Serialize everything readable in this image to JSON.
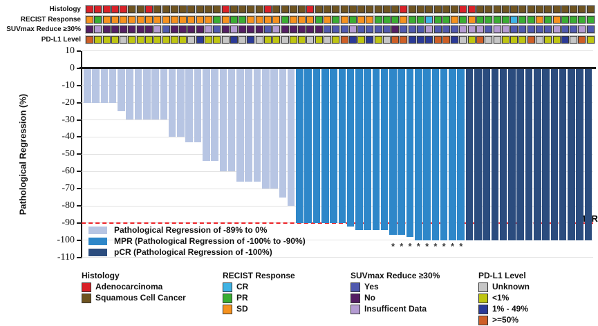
{
  "tracks": {
    "rows": [
      {
        "label": "Histology",
        "values": [
          "A",
          "A",
          "A",
          "A",
          "A",
          "S",
          "S",
          "A",
          "S",
          "S",
          "S",
          "S",
          "S",
          "S",
          "S",
          "S",
          "A",
          "S",
          "S",
          "S",
          "S",
          "A",
          "S",
          "S",
          "S",
          "S",
          "A",
          "S",
          "S",
          "S",
          "S",
          "S",
          "S",
          "S",
          "S",
          "S",
          "S",
          "A",
          "S",
          "S",
          "S",
          "S",
          "S",
          "S",
          "A",
          "A",
          "S",
          "S",
          "S",
          "S",
          "S",
          "S",
          "S",
          "S",
          "S",
          "S",
          "S",
          "S",
          "S",
          "S"
        ],
        "palette": {
          "A": "#da2128",
          "S": "#6f5420"
        }
      },
      {
        "label": "RECIST Response",
        "values": [
          "O",
          "G",
          "O",
          "O",
          "O",
          "O",
          "O",
          "O",
          "O",
          "O",
          "O",
          "O",
          "O",
          "O",
          "O",
          "G",
          "O",
          "G",
          "G",
          "O",
          "O",
          "O",
          "O",
          "G",
          "O",
          "O",
          "O",
          "G",
          "O",
          "G",
          "O",
          "G",
          "O",
          "O",
          "G",
          "G",
          "G",
          "O",
          "G",
          "G",
          "C",
          "G",
          "G",
          "O",
          "G",
          "O",
          "G",
          "G",
          "G",
          "G",
          "C",
          "G",
          "G",
          "O",
          "G",
          "O",
          "G",
          "G",
          "G",
          "G"
        ],
        "palette": {
          "O": "#f6921e",
          "G": "#3aae32",
          "C": "#3fb3e4"
        }
      },
      {
        "label": "SUVmax Reduce ≥30%",
        "values": [
          "N",
          "I",
          "N",
          "N",
          "N",
          "N",
          "N",
          "N",
          "I",
          "Y",
          "N",
          "N",
          "N",
          "N",
          "I",
          "Y",
          "N",
          "I",
          "N",
          "N",
          "N",
          "Y",
          "I",
          "N",
          "N",
          "N",
          "N",
          "N",
          "Y",
          "Y",
          "Y",
          "I",
          "Y",
          "Y",
          "Y",
          "Y",
          "N",
          "Y",
          "Y",
          "Y",
          "I",
          "Y",
          "Y",
          "Y",
          "I",
          "I",
          "I",
          "Y",
          "I",
          "I",
          "Y",
          "Y",
          "Y",
          "Y",
          "Y",
          "I",
          "Y",
          "Y",
          "I",
          "Y"
        ],
        "palette": {
          "Y": "#5059ae",
          "N": "#541e63",
          "I": "#b49bd2"
        }
      },
      {
        "label": "PD-L1 Level",
        "values": [
          "H",
          "L",
          "L",
          "L",
          "U",
          "L",
          "L",
          "L",
          "L",
          "L",
          "L",
          "L",
          "U",
          "M",
          "L",
          "L",
          "U",
          "M",
          "U",
          "M",
          "U",
          "L",
          "L",
          "U",
          "L",
          "L",
          "U",
          "L",
          "U",
          "L",
          "H",
          "M",
          "L",
          "M",
          "L",
          "U",
          "H",
          "H",
          "M",
          "M",
          "M",
          "H",
          "H",
          "M",
          "U",
          "L",
          "H",
          "U",
          "U",
          "L",
          "L",
          "L",
          "H",
          "U",
          "L",
          "L",
          "M",
          "U",
          "H",
          "L"
        ],
        "palette": {
          "U": "#c6c6c6",
          "L": "#bfc512",
          "M": "#2b3a97",
          "H": "#ce5f27"
        }
      }
    ]
  },
  "chart_data": {
    "type": "bar",
    "title": "",
    "xlabel": "",
    "ylabel": "Pathological Regression (%)",
    "ylim": [
      -110,
      10
    ],
    "yticks": [
      10,
      0,
      -10,
      -20,
      -30,
      -40,
      -50,
      -60,
      -70,
      -80,
      -90,
      -100,
      -110
    ],
    "grid": true,
    "values": [
      -20,
      -20,
      -20,
      -20,
      -25,
      -30,
      -30,
      -30,
      -30,
      -30,
      -40,
      -40,
      -43,
      -43,
      -54,
      -54,
      -60,
      -60,
      -66,
      -66,
      -66,
      -70,
      -70,
      -75,
      -80,
      -90,
      -90,
      -90,
      -90,
      -90,
      -90,
      -92,
      -94,
      -94,
      -94,
      -94,
      -97,
      -97,
      -98,
      -100,
      -100,
      -100,
      -100,
      -100,
      -100,
      -100,
      -100,
      -100,
      -100,
      -100,
      -100,
      -100,
      -100,
      -100,
      -100,
      -100,
      -100,
      -100,
      -100,
      -100
    ],
    "groups": [
      "light",
      "light",
      "light",
      "light",
      "light",
      "light",
      "light",
      "light",
      "light",
      "light",
      "light",
      "light",
      "light",
      "light",
      "light",
      "light",
      "light",
      "light",
      "light",
      "light",
      "light",
      "light",
      "light",
      "light",
      "light",
      "mpr",
      "mpr",
      "mpr",
      "mpr",
      "mpr",
      "mpr",
      "mpr",
      "mpr",
      "mpr",
      "mpr",
      "mpr",
      "mpr",
      "mpr",
      "mpr",
      "mpr",
      "mpr",
      "mpr",
      "mpr",
      "mpr",
      "mpr",
      "pcr",
      "pcr",
      "pcr",
      "pcr",
      "pcr",
      "pcr",
      "pcr",
      "pcr",
      "pcr",
      "pcr",
      "pcr",
      "pcr",
      "pcr",
      "pcr",
      "pcr"
    ],
    "group_colors": {
      "light": "#b7c5e3",
      "mpr": "#2e87c9",
      "pcr": "#2b4c7e"
    },
    "asterisk_bars": [
      37,
      38,
      39,
      40,
      41,
      42,
      43,
      44,
      45
    ],
    "asterisk_symbol": "*",
    "threshold_line": {
      "y": -90,
      "label": "MPR",
      "color": "#ec2227",
      "style": "dashed"
    },
    "legend": [
      {
        "label": "Pathological Regression of -89% to 0%",
        "color": "#b7c5e3"
      },
      {
        "label": "MPR (Pathological Regression of -100% to -90%)",
        "color": "#2e87c9"
      },
      {
        "label": "pCR (Pathological Regression of -100%)",
        "color": "#2b4c7e"
      }
    ],
    "legend_position": "lower left"
  },
  "bottom_legend": {
    "groups": [
      {
        "title": "Histology",
        "items": [
          {
            "label": "Adenocarcinoma",
            "color": "#da2128"
          },
          {
            "label": "Squamous Cell Cancer",
            "color": "#6f5420"
          }
        ]
      },
      {
        "title": "RECIST Response",
        "items": [
          {
            "label": "CR",
            "color": "#3fb3e4"
          },
          {
            "label": "PR",
            "color": "#3aae32"
          },
          {
            "label": "SD",
            "color": "#f6921e"
          }
        ]
      },
      {
        "title": "SUVmax Reduce ≥30%",
        "items": [
          {
            "label": "Yes",
            "color": "#5059ae"
          },
          {
            "label": "No",
            "color": "#541e63"
          },
          {
            "label": "Insufficent Data",
            "color": "#b49bd2"
          }
        ]
      },
      {
        "title": "PD-L1 Level",
        "items": [
          {
            "label": "Unknown",
            "color": "#c6c6c6"
          },
          {
            "label": "<1%",
            "color": "#bfc512"
          },
          {
            "label": "1% - 49%",
            "color": "#2b3a97"
          },
          {
            "label": ">=50%",
            "color": "#ce5f27"
          }
        ]
      }
    ]
  }
}
